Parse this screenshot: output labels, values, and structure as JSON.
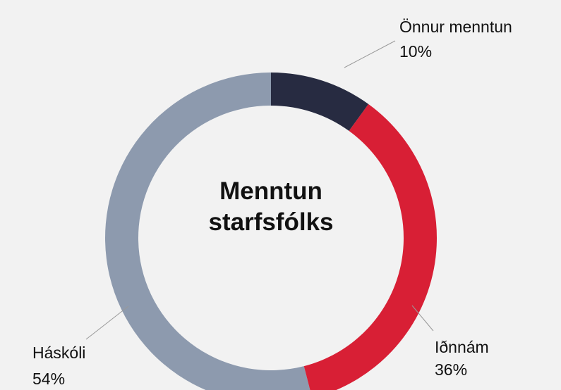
{
  "chart_data": {
    "type": "donut",
    "title": "Menntun starfsfólks",
    "categories": [
      "Önnur menntun",
      "Iðnnám",
      "Háskóli"
    ],
    "values": [
      10,
      36,
      54
    ],
    "value_labels": [
      "10%",
      "36%",
      "54%"
    ],
    "colors": [
      "#272b41",
      "#d81f35",
      "#8d9aae"
    ]
  }
}
